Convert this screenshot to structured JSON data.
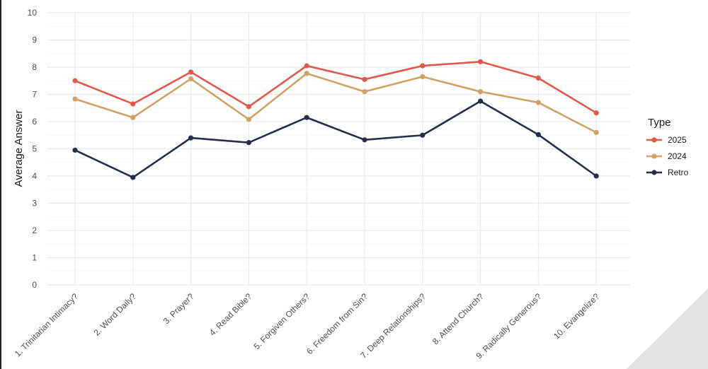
{
  "chart_data": {
    "type": "line",
    "ylabel": "Average Answer",
    "ylim": [
      0,
      10
    ],
    "yticks": [
      "0",
      "1",
      "2",
      "3",
      "4",
      "5",
      "6",
      "7",
      "8",
      "9",
      "10"
    ],
    "categories": [
      "1. Trinitarian Intimacy?",
      "2. Word Daily?",
      "3. Prayer?",
      "4. Read Bible?",
      "5. Forgiven Others?",
      "6. Freedom from Sin?",
      "7. Deep Relationships?",
      "8. Attend Church?",
      "9. Radically Generous?",
      "10. Evangelize?"
    ],
    "legend_title": "Type",
    "legend_position": "right",
    "grid": true,
    "series": [
      {
        "name": "2025",
        "color": "#e0584a",
        "values": [
          7.5,
          6.65,
          7.82,
          6.55,
          8.05,
          7.55,
          8.05,
          8.2,
          7.6,
          6.32
        ]
      },
      {
        "name": "2024",
        "color": "#cfa264",
        "values": [
          6.83,
          6.15,
          7.57,
          6.08,
          7.77,
          7.1,
          7.65,
          7.1,
          6.7,
          5.6
        ]
      },
      {
        "name": "Retro",
        "color": "#262f47",
        "values": [
          4.95,
          3.95,
          5.4,
          5.23,
          6.15,
          5.33,
          5.5,
          6.75,
          5.52,
          4.0
        ]
      }
    ]
  }
}
